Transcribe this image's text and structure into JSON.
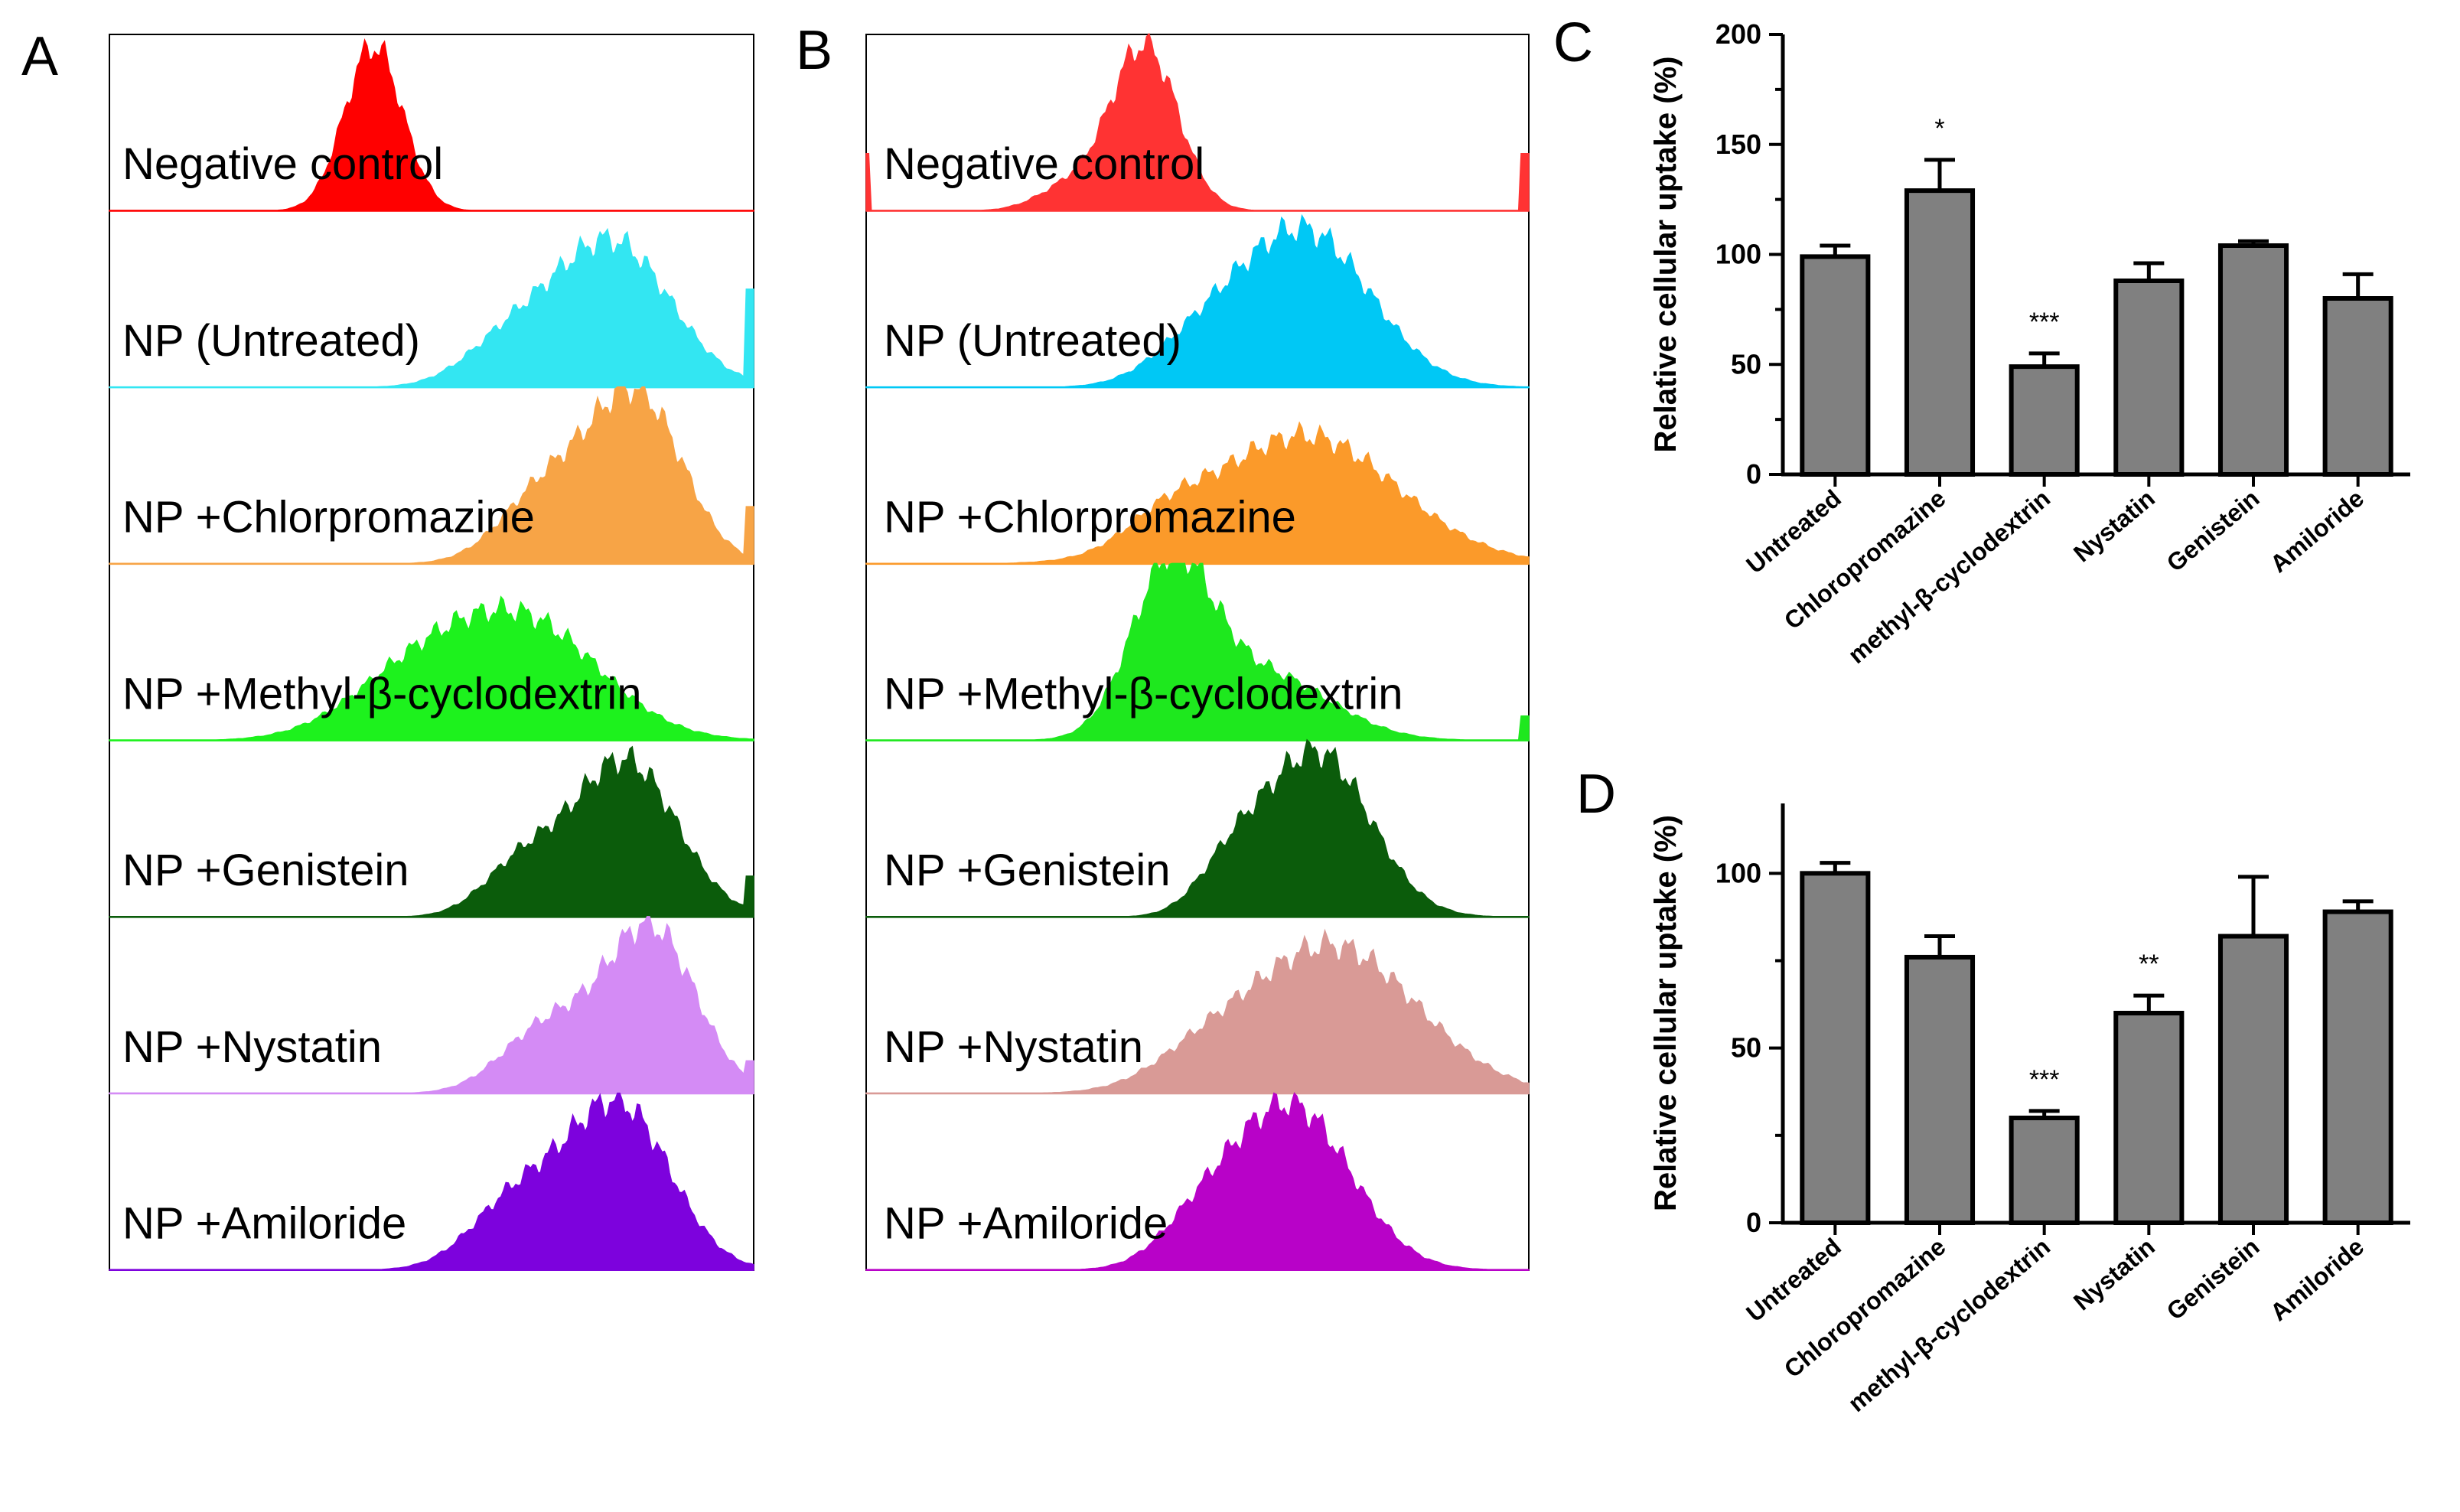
{
  "figure": {
    "panels": {
      "A": {
        "letter": "A"
      },
      "B": {
        "letter": "B"
      },
      "C": {
        "letter": "C"
      },
      "D": {
        "letter": "D"
      }
    }
  },
  "chart_data": [
    {
      "id": "A",
      "type": "area",
      "title": "",
      "xlabel": "",
      "ylabel": "",
      "note": "Stacked flow-cytometry fluorescence histograms (relative shape, arbitrary units)",
      "series": [
        {
          "name": "Negative control",
          "color": "#ff0000",
          "peaks": [
            {
              "center": 0.41,
              "width": 0.045,
              "height": 1.0
            }
          ],
          "edge": 0.0
        },
        {
          "name": "NP  (Untreated)",
          "color": "#33e6f2",
          "peaks": [
            {
              "center": 0.78,
              "width": 0.09,
              "height": 0.88
            },
            {
              "center": 0.62,
              "width": 0.07,
              "height": 0.25
            }
          ],
          "edge": 0.6
        },
        {
          "name": "NP +Chlorpromazine",
          "color": "#f7a446",
          "peaks": [
            {
              "center": 0.82,
              "width": 0.07,
              "height": 1.0
            },
            {
              "center": 0.68,
              "width": 0.07,
              "height": 0.45
            }
          ],
          "edge": 0.35
        },
        {
          "name": "NP +Methyl-β-cyclodextrin",
          "color": "#1df21d",
          "peaks": [
            {
              "center": 0.64,
              "width": 0.12,
              "height": 0.72
            },
            {
              "center": 0.46,
              "width": 0.1,
              "height": 0.3
            }
          ],
          "edge": 0.0
        },
        {
          "name": "NP +Genistein",
          "color": "#0b5c0b",
          "peaks": [
            {
              "center": 0.8,
              "width": 0.08,
              "height": 0.95
            },
            {
              "center": 0.64,
              "width": 0.06,
              "height": 0.3
            }
          ],
          "edge": 0.25
        },
        {
          "name": "NP +Nystatin",
          "color": "#d48bf5",
          "peaks": [
            {
              "center": 0.84,
              "width": 0.07,
              "height": 1.0
            },
            {
              "center": 0.68,
              "width": 0.07,
              "height": 0.4
            }
          ],
          "edge": 0.2
        },
        {
          "name": "NP +Amiloride",
          "color": "#7d02dd",
          "peaks": [
            {
              "center": 0.79,
              "width": 0.08,
              "height": 1.0
            },
            {
              "center": 0.63,
              "width": 0.07,
              "height": 0.4
            }
          ],
          "edge": 0.0
        }
      ]
    },
    {
      "id": "B",
      "type": "area",
      "title": "",
      "xlabel": "",
      "ylabel": "",
      "note": "Stacked flow-cytometry fluorescence histograms (relative shape, arbitrary units)",
      "series": [
        {
          "name": "Negative control",
          "color": "#ff3333",
          "peaks": [
            {
              "center": 0.42,
              "width": 0.05,
              "height": 1.0
            },
            {
              "center": 0.31,
              "width": 0.05,
              "height": 0.15
            }
          ],
          "edge": 0.35
        },
        {
          "name": "NP  (Untreated)",
          "color": "#00c8f5",
          "peaks": [
            {
              "center": 0.66,
              "width": 0.1,
              "height": 0.95
            },
            {
              "center": 0.5,
              "width": 0.07,
              "height": 0.2
            }
          ],
          "edge": 0.0
        },
        {
          "name": "NP +Chlorpromazine",
          "color": "#fb9a2a",
          "peaks": [
            {
              "center": 0.66,
              "width": 0.14,
              "height": 0.78
            },
            {
              "center": 0.45,
              "width": 0.06,
              "height": 0.15
            }
          ],
          "edge": 0.0
        },
        {
          "name": "NP +Methyl-β-cyclodextrin",
          "color": "#1ee81e",
          "peaks": [
            {
              "center": 0.46,
              "width": 0.06,
              "height": 1.0
            },
            {
              "center": 0.6,
              "width": 0.1,
              "height": 0.4
            }
          ],
          "edge": 0.15
        },
        {
          "name": "NP +Genistein",
          "color": "#0b5c0b",
          "peaks": [
            {
              "center": 0.68,
              "width": 0.08,
              "height": 1.0
            },
            {
              "center": 0.55,
              "width": 0.05,
              "height": 0.25
            }
          ],
          "edge": 0.0
        },
        {
          "name": "NP +Nystatin",
          "color": "#d99a96",
          "peaks": [
            {
              "center": 0.7,
              "width": 0.13,
              "height": 0.9
            },
            {
              "center": 0.5,
              "width": 0.07,
              "height": 0.12
            }
          ],
          "edge": 0.0
        },
        {
          "name": "NP +Amiloride",
          "color": "#b802c8",
          "peaks": [
            {
              "center": 0.64,
              "width": 0.09,
              "height": 1.0
            },
            {
              "center": 0.5,
              "width": 0.06,
              "height": 0.2
            }
          ],
          "edge": 0.0
        }
      ]
    },
    {
      "id": "C",
      "type": "bar",
      "title": "",
      "xlabel": "",
      "ylabel": "Relative cellular uptake (%)",
      "ylim": [
        0,
        200
      ],
      "yticks": [
        0,
        50,
        100,
        150,
        200
      ],
      "categories": [
        "Untreated",
        "Chloropromazine",
        "methyl-β-cyclodextrin",
        "Nystatin",
        "Genistein",
        "Amiloride"
      ],
      "values": [
        99,
        129,
        49,
        88,
        104,
        80
      ],
      "errors": [
        5,
        14,
        6,
        8,
        2,
        11
      ],
      "significance": [
        "",
        "*",
        "***",
        "",
        "",
        ""
      ],
      "bar_color": "#808080"
    },
    {
      "id": "D",
      "type": "bar",
      "title": "",
      "xlabel": "",
      "ylabel": "Relative cellular uptake (%)",
      "ylim": [
        0,
        120
      ],
      "yticks": [
        0,
        50,
        100
      ],
      "categories": [
        "Untreated",
        "Chloropromazine",
        "methyl-β-cyclodextrin",
        "Nystatin",
        "Genistein",
        "Amiloride"
      ],
      "values": [
        100,
        76,
        30,
        60,
        82,
        89
      ],
      "errors": [
        3,
        6,
        2,
        5,
        17,
        3
      ],
      "significance": [
        "",
        "",
        "***",
        "**",
        "",
        ""
      ],
      "bar_color": "#808080"
    }
  ]
}
